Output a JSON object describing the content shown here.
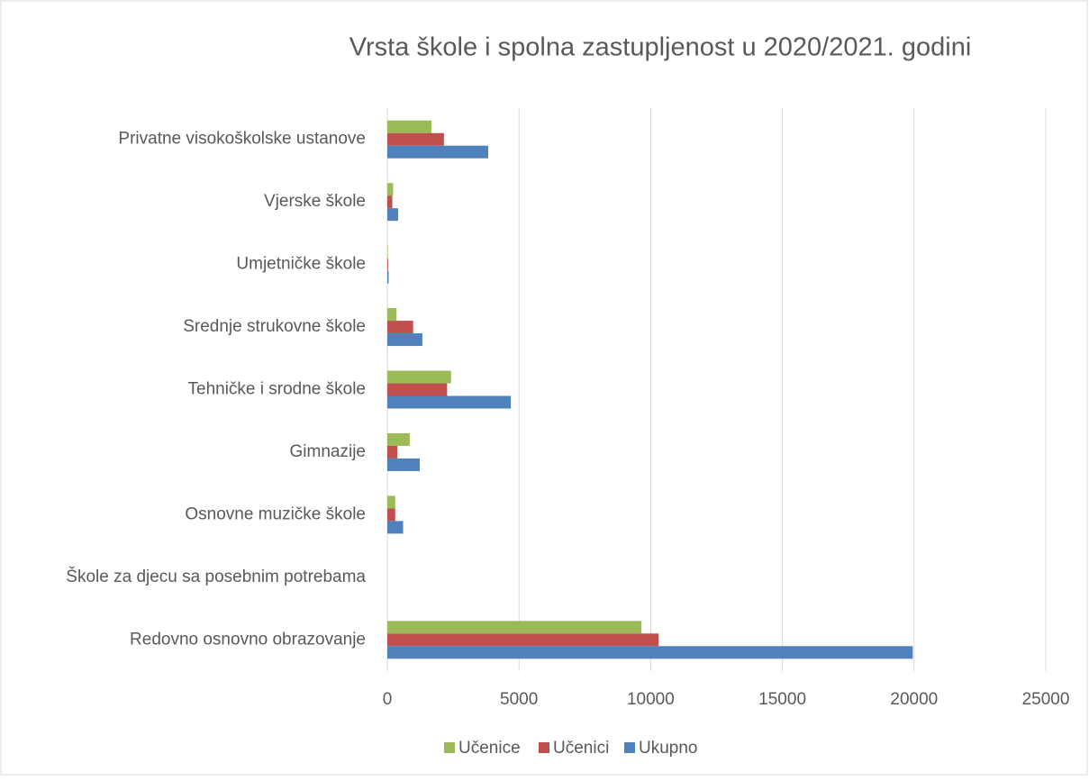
{
  "chart_data": {
    "type": "bar",
    "orientation": "horizontal",
    "title": "Vrsta škole i spolna zastupljenost u 2020/2021. godini",
    "categories": [
      "Redovno osnovno obrazovanje",
      "Škole za djecu sa posebnim potrebama",
      "Osnovne muzičke škole",
      "Gimnazije",
      "Tehničke i srodne škole",
      "Srednje strukovne škole",
      "Umjetničke škole",
      "Vjerske škole",
      "Privatne visokoškolske ustanove"
    ],
    "series": [
      {
        "name": "Učenice",
        "color": "#9bbb59",
        "values": [
          9650,
          0,
          300,
          850,
          2420,
          350,
          20,
          220,
          1680
        ]
      },
      {
        "name": "Učenici",
        "color": "#c0504d",
        "values": [
          10300,
          0,
          300,
          380,
          2270,
          980,
          30,
          190,
          2150
        ]
      },
      {
        "name": "Ukupno",
        "color": "#4f81bd",
        "values": [
          19950,
          0,
          600,
          1230,
          4690,
          1330,
          50,
          410,
          3830
        ]
      }
    ],
    "xlim": [
      0,
      25000
    ],
    "xticks": [
      0,
      5000,
      10000,
      15000,
      20000,
      25000
    ],
    "grid": true,
    "legend": "bottom"
  }
}
